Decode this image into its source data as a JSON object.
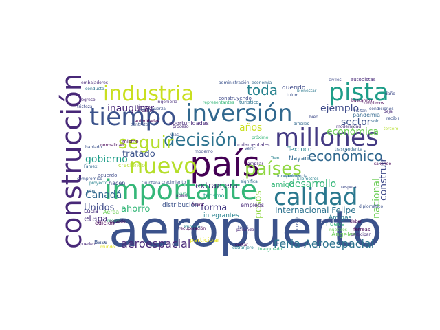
{
  "wordcloud": {
    "palette": {
      "purple": "#440154",
      "indigo": "#3b528b",
      "slate": "#31688e",
      "teal": "#21918c",
      "green": "#35b779",
      "lime": "#90d743",
      "yellow": "#e3e418"
    },
    "words": [
      {
        "text": "aeropuerto",
        "color": "#3b528b"
      },
      {
        "text": "país",
        "color": "#440154"
      },
      {
        "text": "importante",
        "color": "#35b779"
      },
      {
        "text": "construcción",
        "color": "#482878"
      },
      {
        "text": "tiempo",
        "color": "#3b528b"
      },
      {
        "text": "inversión",
        "color": "#31688e"
      },
      {
        "text": "industria",
        "color": "#c9df1f"
      },
      {
        "text": "pista",
        "color": "#1f9e89"
      },
      {
        "text": "millones",
        "color": "#443a83"
      },
      {
        "text": "decisión",
        "color": "#2c728e"
      },
      {
        "text": "seguir",
        "color": "#b5de2b"
      },
      {
        "text": "nuevo",
        "color": "#b5de2b"
      },
      {
        "text": "países",
        "color": "#90d743"
      },
      {
        "text": "calidad",
        "color": "#2a788e"
      },
      {
        "text": "económico",
        "color": "#31688e"
      },
      {
        "text": "toda",
        "color": "#26828e"
      },
      {
        "text": "ejemplo",
        "color": "#3e4a89"
      },
      {
        "text": "sector",
        "color": "#3b528b"
      },
      {
        "text": "económica",
        "color": "#6ece58"
      },
      {
        "text": "inaugurar",
        "color": "#482878"
      },
      {
        "text": "desarrollo",
        "color": "#35b779"
      },
      {
        "text": "construir",
        "color": "#3e4a89"
      },
      {
        "text": "nacional",
        "color": "#6ece58"
      },
      {
        "text": "extranjera",
        "color": "#472d7b"
      },
      {
        "text": "amigo",
        "color": "#35b779"
      },
      {
        "text": "pesos",
        "color": "#90d743"
      },
      {
        "text": "Feria Aeroespacial",
        "color": "#2c728e"
      },
      {
        "text": "aeroespacial",
        "color": "#482878"
      },
      {
        "text": "Unidos",
        "color": "#3e4a89"
      },
      {
        "text": "ahorro",
        "color": "#35b779"
      },
      {
        "text": "forma",
        "color": "#443a83"
      },
      {
        "text": "Internacional Felipe",
        "color": "#2c728e"
      },
      {
        "text": "etapa",
        "color": "#472d7b"
      },
      {
        "text": "Canadá",
        "color": "#31688e"
      },
      {
        "text": "tratado",
        "color": "#3b528b"
      },
      {
        "text": "gobierno",
        "color": "#1f9e89"
      },
      {
        "text": "años",
        "color": "#c9df1f"
      },
      {
        "text": "querido",
        "color": "#3e4a89"
      },
      {
        "text": "nueva",
        "color": "#35b779"
      },
      {
        "text": "distribución",
        "color": "#3b528b"
      },
      {
        "text": "oportunidades",
        "color": "#482878"
      },
      {
        "text": "Nayarit",
        "color": "#31688e"
      },
      {
        "text": "Texcoco",
        "color": "#26828e"
      },
      {
        "text": "Amigas",
        "color": "#2a788e"
      },
      {
        "text": "Ángeles",
        "color": "#6ece58"
      },
      {
        "text": "participar",
        "color": "#e3e418"
      },
      {
        "text": "integrantes",
        "color": "#26828e"
      },
      {
        "text": "tanto",
        "color": "#440154"
      },
      {
        "text": "creciendo",
        "color": "#b5de2b"
      },
      {
        "text": "Lucía",
        "color": "#472d7b"
      },
      {
        "text": "Aérea",
        "color": "#6ece58"
      },
      {
        "text": "edición",
        "color": "#440154"
      },
      {
        "text": "pie",
        "color": "#31688e"
      },
      {
        "text": "Base",
        "color": "#3b528b"
      },
      {
        "text": "empleos",
        "color": "#482878"
      },
      {
        "text": "turismo",
        "color": "#1f9e89"
      },
      {
        "text": "ferreas",
        "color": "#440154"
      },
      {
        "text": "autopistas",
        "color": "#482878"
      },
      {
        "text": "civiles",
        "color": "#3e4a89"
      },
      {
        "text": "cumplimos",
        "color": "#440154"
      },
      {
        "text": "buscamos",
        "color": "#440154"
      },
      {
        "text": "pandemia",
        "color": "#31688e"
      },
      {
        "text": "modernidad",
        "color": "#472d7b"
      },
      {
        "text": "Independencia",
        "color": "#31688e"
      },
      {
        "text": "saliendo",
        "color": "#440154"
      },
      {
        "text": "acuerdo",
        "color": "#3e4a89"
      },
      {
        "text": "Tren",
        "color": "#26828e"
      },
      {
        "text": "trascendente",
        "color": "#31688e"
      },
      {
        "text": "fundamentales",
        "color": "#472d7b"
      },
      {
        "text": "Himno",
        "color": "#482878"
      },
      {
        "text": "militar",
        "color": "#3b528b"
      },
      {
        "text": "Fuerza",
        "color": "#3b528b"
      },
      {
        "text": "embajadores",
        "color": "#482878"
      },
      {
        "text": "administración",
        "color": "#3b528b"
      },
      {
        "text": "economía",
        "color": "#31688e"
      },
      {
        "text": "construyendo",
        "color": "#3e4a89"
      },
      {
        "text": "turístico",
        "color": "#2c728e"
      },
      {
        "text": "representantes",
        "color": "#35b779"
      },
      {
        "text": "mismo",
        "color": "#440154"
      },
      {
        "text": "proceso",
        "color": "#482878"
      },
      {
        "text": "dificiles",
        "color": "#31688e"
      },
      {
        "text": "condiciones",
        "color": "#3b528b"
      },
      {
        "text": "caminos",
        "color": "#26828e"
      },
      {
        "text": "kilómetros",
        "color": "#26828e"
      },
      {
        "text": "respetar",
        "color": "#3e4a89"
      },
      {
        "text": "diplomático",
        "color": "#3b528b"
      },
      {
        "text": "récord",
        "color": "#35b779"
      },
      {
        "text": "Primero",
        "color": "#26828e"
      },
      {
        "text": "pasando",
        "color": "#482878"
      },
      {
        "text": "tomó",
        "color": "#3e4a89"
      },
      {
        "text": "costo",
        "color": "#3b528b"
      },
      {
        "text": "deber",
        "color": "#440154"
      },
      {
        "text": "participan",
        "color": "#472d7b"
      },
      {
        "text": "nuestros",
        "color": "#6ece58"
      },
      {
        "text": "hacen",
        "color": "#3e4a89"
      },
      {
        "text": "proyecto",
        "color": "#26828e"
      },
      {
        "text": "crecimiento",
        "color": "#3b528b"
      },
      {
        "text": "significa",
        "color": "#31688e"
      },
      {
        "text": "Quintana",
        "color": "#3b528b"
      },
      {
        "text": "marzo",
        "color": "#35b779"
      },
      {
        "text": "pueden",
        "color": "#482878"
      },
      {
        "text": "Famex",
        "color": "#31688e"
      },
      {
        "text": "compromiso",
        "color": "#3b528b"
      },
      {
        "text": "hablado",
        "color": "#3b528b"
      },
      {
        "text": "normalidad",
        "color": "#440154"
      },
      {
        "text": "tristeza",
        "color": "#3e4a89"
      },
      {
        "text": "regreso",
        "color": "#482878"
      },
      {
        "text": "conducto",
        "color": "#2c728e"
      },
      {
        "text": "recuperación",
        "color": "#440154"
      },
      {
        "text": "extranjero",
        "color": "#26828e"
      },
      {
        "text": "inaugurado",
        "color": "#35b779"
      },
      {
        "text": "autoridades",
        "color": "#440154"
      },
      {
        "text": "ingeniería",
        "color": "#472d7b"
      },
      {
        "text": "tulum",
        "color": "#3b528b"
      },
      {
        "text": "bienestar",
        "color": "#2a788e"
      },
      {
        "text": "empresas",
        "color": "#3e4a89"
      },
      {
        "text": "ampliar",
        "color": "#482878"
      },
      {
        "text": "fuera",
        "color": "#440154"
      },
      {
        "text": "abajo",
        "color": "#482878"
      },
      {
        "text": "vías",
        "color": "#3b528b"
      },
      {
        "text": "moderno",
        "color": "#3e4a89"
      },
      {
        "text": "privado",
        "color": "#440154"
      },
      {
        "text": "venir",
        "color": "#3b528b"
      },
      {
        "text": "contratos",
        "color": "#3b528b"
      },
      {
        "text": "mundo",
        "color": "#e3e418"
      },
      {
        "text": "visitan",
        "color": "#3b528b"
      },
      {
        "text": "próximo",
        "color": "#35b779"
      },
      {
        "text": "bien",
        "color": "#3e4a89"
      },
      {
        "text": "solo",
        "color": "#31688e"
      },
      {
        "text": "costar",
        "color": "#440154"
      },
      {
        "text": "recibir",
        "color": "#3b528b"
      },
      {
        "text": "tercero",
        "color": "#b5de2b"
      },
      {
        "text": "daño",
        "color": "#3e4a89"
      },
      {
        "text": "deja",
        "color": "#482878"
      }
    ]
  }
}
